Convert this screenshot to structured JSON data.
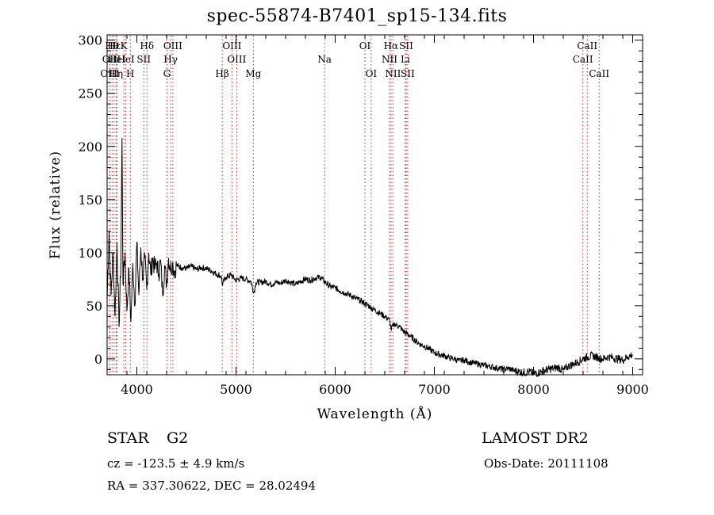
{
  "title": "spec-55874-B7401_sp15-134.fits",
  "footer": {
    "object_class": "STAR",
    "subclass": "G2",
    "survey": "LAMOST DR2",
    "redshift": "cz = -123.5 ± 4.9 km/s",
    "obs_date": "Obs-Date: 20111108",
    "coords": "RA = 337.30622, DEC =  28.02494"
  },
  "chart_data": {
    "type": "line",
    "title": "spec-55874-B7401_sp15-134.fits",
    "xlabel": "Wavelength (Å)",
    "ylabel": "Flux (relative)",
    "xlim": [
      3700,
      9100
    ],
    "ylim": [
      -15,
      305
    ],
    "xticks": [
      4000,
      5000,
      6000,
      7000,
      8000,
      9000
    ],
    "yticks": [
      0,
      50,
      100,
      150,
      200,
      250,
      300
    ],
    "grid": false,
    "line_color": "#000000",
    "marker_color": "#cc2222",
    "series": [
      {
        "x": [
          3700,
          3720,
          3740,
          3760,
          3780,
          3800,
          3820,
          3840,
          3850,
          3860,
          3880,
          3900,
          3920,
          3940,
          3960,
          3980,
          4000,
          4020,
          4040,
          4060,
          4080,
          4100,
          4120,
          4140,
          4160,
          4180,
          4200,
          4220,
          4240,
          4260,
          4280,
          4300,
          4320,
          4340,
          4360,
          4380,
          4400,
          4450,
          4500,
          4550,
          4600,
          4650,
          4700,
          4750,
          4800,
          4850,
          4861,
          4900,
          4950,
          5000,
          5050,
          5100,
          5150,
          5180,
          5200,
          5250,
          5300,
          5350,
          5400,
          5450,
          5500,
          5550,
          5600,
          5650,
          5700,
          5750,
          5800,
          5850,
          5900,
          5950,
          6000,
          6050,
          6100,
          6150,
          6200,
          6250,
          6300,
          6350,
          6400,
          6450,
          6500,
          6550,
          6563,
          6600,
          6650,
          6700,
          6750,
          6800,
          6850,
          6900,
          6950,
          7000,
          7050,
          7100,
          7150,
          7200,
          7250,
          7300,
          7350,
          7400,
          7450,
          7500,
          7550,
          7600,
          7650,
          7700,
          7750,
          7800,
          7850,
          7900,
          7950,
          8000,
          8050,
          8100,
          8150,
          8200,
          8250,
          8300,
          8350,
          8400,
          8450,
          8500,
          8550,
          8600,
          8650,
          8700,
          8750,
          8800,
          8850,
          8900,
          8950,
          9000
        ],
        "y": [
          55,
          120,
          60,
          100,
          40,
          110,
          30,
          95,
          208,
          70,
          100,
          45,
          85,
          35,
          90,
          50,
          110,
          60,
          105,
          75,
          95,
          65,
          100,
          80,
          95,
          85,
          90,
          80,
          92,
          60,
          88,
          70,
          95,
          85,
          90,
          82,
          88,
          86,
          85,
          87,
          84,
          86,
          85,
          83,
          80,
          78,
          70,
          77,
          79,
          74,
          76,
          75,
          73,
          62,
          72,
          72,
          73,
          70,
          72,
          71,
          74,
          72,
          70,
          73,
          75,
          74,
          76,
          77,
          72,
          68,
          67,
          64,
          62,
          60,
          57,
          55,
          52,
          49,
          46,
          43,
          40,
          36,
          28,
          33,
          30,
          25,
          22,
          18,
          14,
          12,
          9,
          6,
          4,
          3,
          1,
          0,
          -2,
          -1,
          -3,
          -4,
          -5,
          -6,
          -7,
          -8,
          -9,
          -10,
          -9,
          -11,
          -12,
          -13,
          -12,
          -14,
          -13,
          -11,
          -10,
          -9,
          -8,
          -11,
          -7,
          -5,
          -3,
          0,
          2,
          3,
          1,
          0,
          2,
          1,
          0,
          -1,
          2,
          4
        ]
      }
    ],
    "line_markers": [
      {
        "x": 3750,
        "label": "Hθ",
        "row": 0
      },
      {
        "x": 3727,
        "label": "OII",
        "row": 1
      },
      {
        "x": 3727,
        "label": "OIII",
        "row": 2
      },
      {
        "x": 3770,
        "label": "Hε",
        "row": 0
      },
      {
        "x": 3800,
        "label": "HeI",
        "row": 1
      },
      {
        "x": 3790,
        "label": "Hη",
        "row": 2
      },
      {
        "x": 3869,
        "label": "K",
        "row": 0
      },
      {
        "x": 3889,
        "label": "HeI",
        "row": 1
      },
      {
        "x": 3934,
        "label": "H",
        "row": 2
      },
      {
        "x": 4070,
        "label": "SII",
        "row": 1
      },
      {
        "x": 4102,
        "label": "Hδ",
        "row": 0
      },
      {
        "x": 4341,
        "label": "Hγ",
        "row": 1
      },
      {
        "x": 4304,
        "label": "G",
        "row": 2
      },
      {
        "x": 4363,
        "label": "OIII",
        "row": 0
      },
      {
        "x": 4861,
        "label": "Hβ",
        "row": 2
      },
      {
        "x": 4959,
        "label": "OIII",
        "row": 0
      },
      {
        "x": 5007,
        "label": "OIII",
        "row": 1
      },
      {
        "x": 5175,
        "label": "Mg",
        "row": 2
      },
      {
        "x": 5893,
        "label": "Na",
        "row": 1
      },
      {
        "x": 6300,
        "label": "OI",
        "row": 0
      },
      {
        "x": 6363,
        "label": "OI",
        "row": 2
      },
      {
        "x": 6548,
        "label": "NII",
        "row": 1
      },
      {
        "x": 6563,
        "label": "Hα",
        "row": 0
      },
      {
        "x": 6583,
        "label": "NII",
        "row": 2
      },
      {
        "x": 6707,
        "label": "Li",
        "row": 1
      },
      {
        "x": 6716,
        "label": "SII",
        "row": 0
      },
      {
        "x": 6731,
        "label": "SII",
        "row": 2
      },
      {
        "x": 8498,
        "label": "CaII",
        "row": 1
      },
      {
        "x": 8542,
        "label": "CaII",
        "row": 0
      },
      {
        "x": 8662,
        "label": "CaII",
        "row": 2
      }
    ]
  }
}
